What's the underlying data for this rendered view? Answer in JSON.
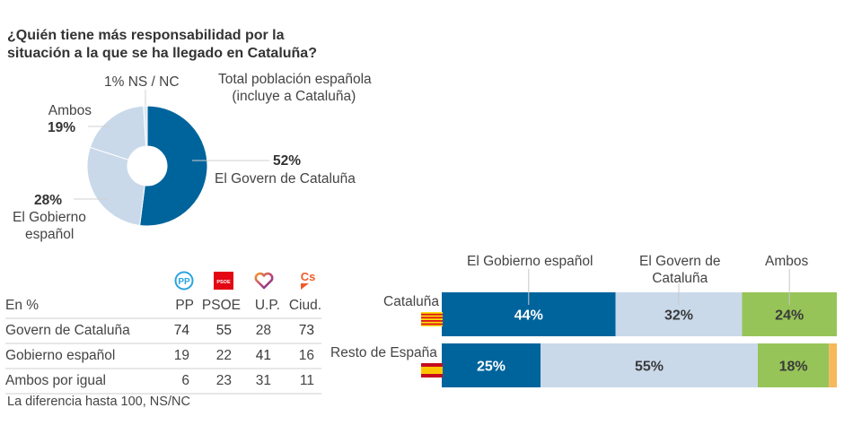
{
  "title_lines": [
    "¿Quién tiene más responsabilidad por la",
    "situación a la que se ha llegado en Cataluña?"
  ],
  "colors": {
    "dark_blue": "#00649c",
    "light_blue": "#c9d9ea",
    "green": "#97c458",
    "orange": "#f6b85a",
    "text": "#444444"
  },
  "chart_data": [
    {
      "type": "pie",
      "title": "Total población española (incluye a Cataluña)",
      "subtitle_lines": [
        "Total población española",
        "(incluye a Cataluña)"
      ],
      "slices": [
        {
          "label": "El Govern de Cataluña",
          "value": 52,
          "value_label": "52%",
          "color": "#00649c"
        },
        {
          "label_lines": [
            "El Gobierno",
            "español"
          ],
          "label": "El Gobierno español",
          "value": 28,
          "value_label": "28%",
          "color": "#c9d9ea"
        },
        {
          "label": "Ambos",
          "value": 19,
          "value_label": "19%",
          "color": "#c9d9ea"
        },
        {
          "label": "NS / NC",
          "value": 1,
          "value_label": "1%",
          "full_label": "1% NS / NC",
          "color": "#dde7f1"
        }
      ]
    },
    {
      "type": "table",
      "title": "En %",
      "columns": [
        "PP",
        "PSOE",
        "U.P.",
        "Ciud."
      ],
      "rows": [
        {
          "label": "Govern de Cataluña",
          "values": [
            74,
            55,
            28,
            73
          ],
          "bold": [
            true,
            true,
            false,
            true
          ]
        },
        {
          "label": "Gobierno español",
          "values": [
            19,
            22,
            41,
            16
          ],
          "bold": [
            false,
            false,
            true,
            false
          ]
        },
        {
          "label": "Ambos por igual",
          "values": [
            6,
            23,
            31,
            11
          ],
          "bold": [
            false,
            false,
            false,
            false
          ]
        }
      ],
      "note": "La diferencia hasta 100, NS/NC"
    },
    {
      "type": "bar",
      "orientation": "horizontal-stacked",
      "categories": [
        "Cataluña",
        "Resto de España"
      ],
      "legend": [
        "El Gobierno español",
        "El Govern de Cataluña",
        "Ambos"
      ],
      "legend_lines": [
        [
          "El Gobierno español"
        ],
        [
          "El Govern de",
          "Cataluña"
        ],
        [
          "Ambos"
        ]
      ],
      "series": [
        {
          "name": "El Gobierno español",
          "values": [
            44,
            25
          ],
          "labels": [
            "44%",
            "25%"
          ],
          "color": "#00649c"
        },
        {
          "name": "El Govern de Cataluña",
          "values": [
            32,
            55
          ],
          "labels": [
            "32%",
            "55%"
          ],
          "color": "#c9d9ea"
        },
        {
          "name": "Ambos",
          "values": [
            24,
            18
          ],
          "labels": [
            "24%",
            "18%"
          ],
          "color": "#97c458"
        },
        {
          "name": "NS/NC",
          "values": [
            0,
            2
          ],
          "labels": [
            "",
            ""
          ],
          "color": "#f6b85a"
        }
      ],
      "xlim": [
        0,
        100
      ]
    }
  ]
}
